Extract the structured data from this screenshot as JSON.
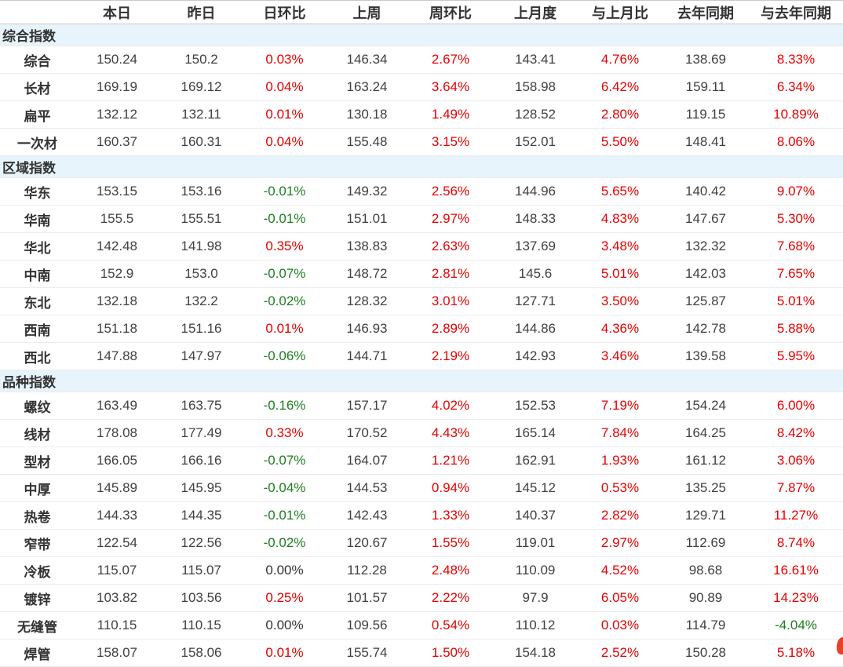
{
  "colors": {
    "positive": "#e60000",
    "negative": "#1e7e1e",
    "neutral": "#333333",
    "section_bg": "#e8f4fc",
    "header_border": "#c9c9c9",
    "row_border": "#ececec",
    "text": "#333333"
  },
  "table": {
    "columns": [
      "",
      "本日",
      "昨日",
      "日环比",
      "上周",
      "周环比",
      "上月度",
      "与上月比",
      "去年同期",
      "与去年同期"
    ],
    "percent_columns": [
      3,
      5,
      7,
      9
    ],
    "sections": [
      {
        "title": "综合指数",
        "rows": [
          [
            "综合",
            "150.24",
            "150.2",
            "0.03%",
            "146.34",
            "2.67%",
            "143.41",
            "4.76%",
            "138.69",
            "8.33%"
          ],
          [
            "长材",
            "169.19",
            "169.12",
            "0.04%",
            "163.24",
            "3.64%",
            "158.98",
            "6.42%",
            "159.11",
            "6.34%"
          ],
          [
            "扁平",
            "132.12",
            "132.11",
            "0.01%",
            "130.18",
            "1.49%",
            "128.52",
            "2.80%",
            "119.15",
            "10.89%"
          ],
          [
            "一次材",
            "160.37",
            "160.31",
            "0.04%",
            "155.48",
            "3.15%",
            "152.01",
            "5.50%",
            "148.41",
            "8.06%"
          ]
        ]
      },
      {
        "title": "区域指数",
        "rows": [
          [
            "华东",
            "153.15",
            "153.16",
            "-0.01%",
            "149.32",
            "2.56%",
            "144.96",
            "5.65%",
            "140.42",
            "9.07%"
          ],
          [
            "华南",
            "155.5",
            "155.51",
            "-0.01%",
            "151.01",
            "2.97%",
            "148.33",
            "4.83%",
            "147.67",
            "5.30%"
          ],
          [
            "华北",
            "142.48",
            "141.98",
            "0.35%",
            "138.83",
            "2.63%",
            "137.69",
            "3.48%",
            "132.32",
            "7.68%"
          ],
          [
            "中南",
            "152.9",
            "153.0",
            "-0.07%",
            "148.72",
            "2.81%",
            "145.6",
            "5.01%",
            "142.03",
            "7.65%"
          ],
          [
            "东北",
            "132.18",
            "132.2",
            "-0.02%",
            "128.32",
            "3.01%",
            "127.71",
            "3.50%",
            "125.87",
            "5.01%"
          ],
          [
            "西南",
            "151.18",
            "151.16",
            "0.01%",
            "146.93",
            "2.89%",
            "144.86",
            "4.36%",
            "142.78",
            "5.88%"
          ],
          [
            "西北",
            "147.88",
            "147.97",
            "-0.06%",
            "144.71",
            "2.19%",
            "142.93",
            "3.46%",
            "139.58",
            "5.95%"
          ]
        ]
      },
      {
        "title": "品种指数",
        "rows": [
          [
            "螺纹",
            "163.49",
            "163.75",
            "-0.16%",
            "157.17",
            "4.02%",
            "152.53",
            "7.19%",
            "154.24",
            "6.00%"
          ],
          [
            "线材",
            "178.08",
            "177.49",
            "0.33%",
            "170.52",
            "4.43%",
            "165.14",
            "7.84%",
            "164.25",
            "8.42%"
          ],
          [
            "型材",
            "166.05",
            "166.16",
            "-0.07%",
            "164.07",
            "1.21%",
            "162.91",
            "1.93%",
            "161.12",
            "3.06%"
          ],
          [
            "中厚",
            "145.89",
            "145.95",
            "-0.04%",
            "144.53",
            "0.94%",
            "145.12",
            "0.53%",
            "135.25",
            "7.87%"
          ],
          [
            "热卷",
            "144.33",
            "144.35",
            "-0.01%",
            "142.43",
            "1.33%",
            "140.37",
            "2.82%",
            "129.71",
            "11.27%"
          ],
          [
            "窄带",
            "122.54",
            "122.56",
            "-0.02%",
            "120.67",
            "1.55%",
            "119.01",
            "2.97%",
            "112.69",
            "8.74%"
          ],
          [
            "冷板",
            "115.07",
            "115.07",
            "0.00%",
            "112.28",
            "2.48%",
            "110.09",
            "4.52%",
            "98.68",
            "16.61%"
          ],
          [
            "镀锌",
            "103.82",
            "103.56",
            "0.25%",
            "101.57",
            "2.22%",
            "97.9",
            "6.05%",
            "90.89",
            "14.23%"
          ],
          [
            "无缝管",
            "110.15",
            "110.15",
            "0.00%",
            "109.56",
            "0.54%",
            "110.12",
            "0.03%",
            "114.79",
            "-4.04%"
          ],
          [
            "焊管",
            "158.07",
            "158.06",
            "0.01%",
            "155.74",
            "1.50%",
            "154.18",
            "2.52%",
            "150.28",
            "5.18%"
          ]
        ]
      }
    ]
  }
}
